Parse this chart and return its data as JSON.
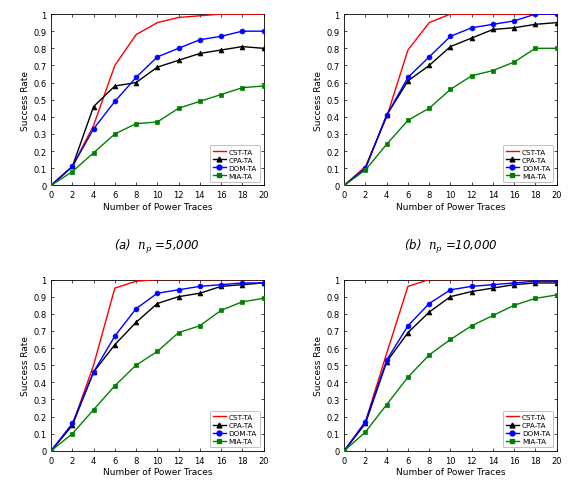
{
  "x": [
    0,
    2,
    4,
    6,
    8,
    10,
    12,
    14,
    16,
    18,
    20
  ],
  "subplots": [
    {
      "title": "(a)  $n_p$ =5,000",
      "CST-TA": [
        0.0,
        0.11,
        0.35,
        0.7,
        0.88,
        0.95,
        0.98,
        0.99,
        1.0,
        1.0,
        1.0
      ],
      "CPA-TA": [
        0.0,
        0.11,
        0.46,
        0.58,
        0.6,
        0.69,
        0.73,
        0.77,
        0.79,
        0.81,
        0.8
      ],
      "DOM-TA": [
        0.0,
        0.11,
        0.33,
        0.49,
        0.63,
        0.75,
        0.8,
        0.85,
        0.87,
        0.9,
        0.9
      ],
      "MIA-TA": [
        0.0,
        0.08,
        0.19,
        0.3,
        0.36,
        0.37,
        0.45,
        0.49,
        0.53,
        0.57,
        0.58
      ]
    },
    {
      "title": "(b)  $n_p$ =10,000",
      "CST-TA": [
        0.0,
        0.11,
        0.4,
        0.79,
        0.95,
        1.0,
        1.0,
        1.0,
        1.0,
        1.0,
        1.0
      ],
      "CPA-TA": [
        0.0,
        0.1,
        0.41,
        0.61,
        0.7,
        0.81,
        0.86,
        0.91,
        0.92,
        0.94,
        0.95
      ],
      "DOM-TA": [
        0.0,
        0.1,
        0.41,
        0.63,
        0.75,
        0.87,
        0.92,
        0.94,
        0.96,
        1.0,
        1.0
      ],
      "MIA-TA": [
        0.0,
        0.09,
        0.24,
        0.38,
        0.45,
        0.56,
        0.64,
        0.67,
        0.72,
        0.8,
        0.8
      ]
    },
    {
      "title": "(c)  $n_p$ =15,000",
      "CST-TA": [
        0.0,
        0.15,
        0.5,
        0.95,
        0.99,
        1.0,
        1.0,
        1.0,
        1.0,
        1.0,
        1.0
      ],
      "CPA-TA": [
        0.0,
        0.15,
        0.46,
        0.62,
        0.75,
        0.86,
        0.9,
        0.92,
        0.96,
        0.97,
        0.98
      ],
      "DOM-TA": [
        0.0,
        0.16,
        0.46,
        0.67,
        0.83,
        0.92,
        0.94,
        0.96,
        0.97,
        0.98,
        0.98
      ],
      "MIA-TA": [
        0.0,
        0.1,
        0.24,
        0.38,
        0.5,
        0.58,
        0.69,
        0.73,
        0.82,
        0.87,
        0.89
      ]
    },
    {
      "title": "(d)  $n_p$ =20,000",
      "CST-TA": [
        0.0,
        0.17,
        0.57,
        0.96,
        1.0,
        1.0,
        1.0,
        1.0,
        1.0,
        1.0,
        1.0
      ],
      "CPA-TA": [
        0.0,
        0.16,
        0.52,
        0.69,
        0.81,
        0.9,
        0.93,
        0.95,
        0.97,
        0.98,
        0.98
      ],
      "DOM-TA": [
        0.0,
        0.17,
        0.53,
        0.73,
        0.86,
        0.94,
        0.96,
        0.97,
        0.98,
        0.99,
        0.99
      ],
      "MIA-TA": [
        0.0,
        0.11,
        0.27,
        0.43,
        0.56,
        0.65,
        0.73,
        0.79,
        0.85,
        0.89,
        0.91
      ]
    }
  ],
  "colors": {
    "CST-TA": "#ff0000",
    "CPA-TA": "#000000",
    "DOM-TA": "#0000ff",
    "MIA-TA": "#008000"
  },
  "markers": {
    "CST-TA": "none",
    "CPA-TA": "^",
    "DOM-TA": "o",
    "MIA-TA": "s"
  },
  "xlabel": "Number of Power Traces",
  "ylabel": "Success Rate",
  "xlim": [
    0,
    20
  ],
  "ylim": [
    0,
    1.0
  ],
  "xticks": [
    0,
    2,
    4,
    6,
    8,
    10,
    12,
    14,
    16,
    18,
    20
  ],
  "yticks": [
    0.0,
    0.1,
    0.2,
    0.3,
    0.4,
    0.5,
    0.6,
    0.7,
    0.8,
    0.9,
    1.0
  ],
  "ytick_labels": [
    "0",
    "0.1",
    "0.2",
    "0.3",
    "0.4",
    "0.5",
    "0.6",
    "0.7",
    "0.8",
    "0.9",
    "1"
  ],
  "legend_order": [
    "CST-TA",
    "CPA-TA",
    "DOM-TA",
    "MIA-TA"
  ],
  "background_color": "#ffffff",
  "fig_background": "#ffffff"
}
